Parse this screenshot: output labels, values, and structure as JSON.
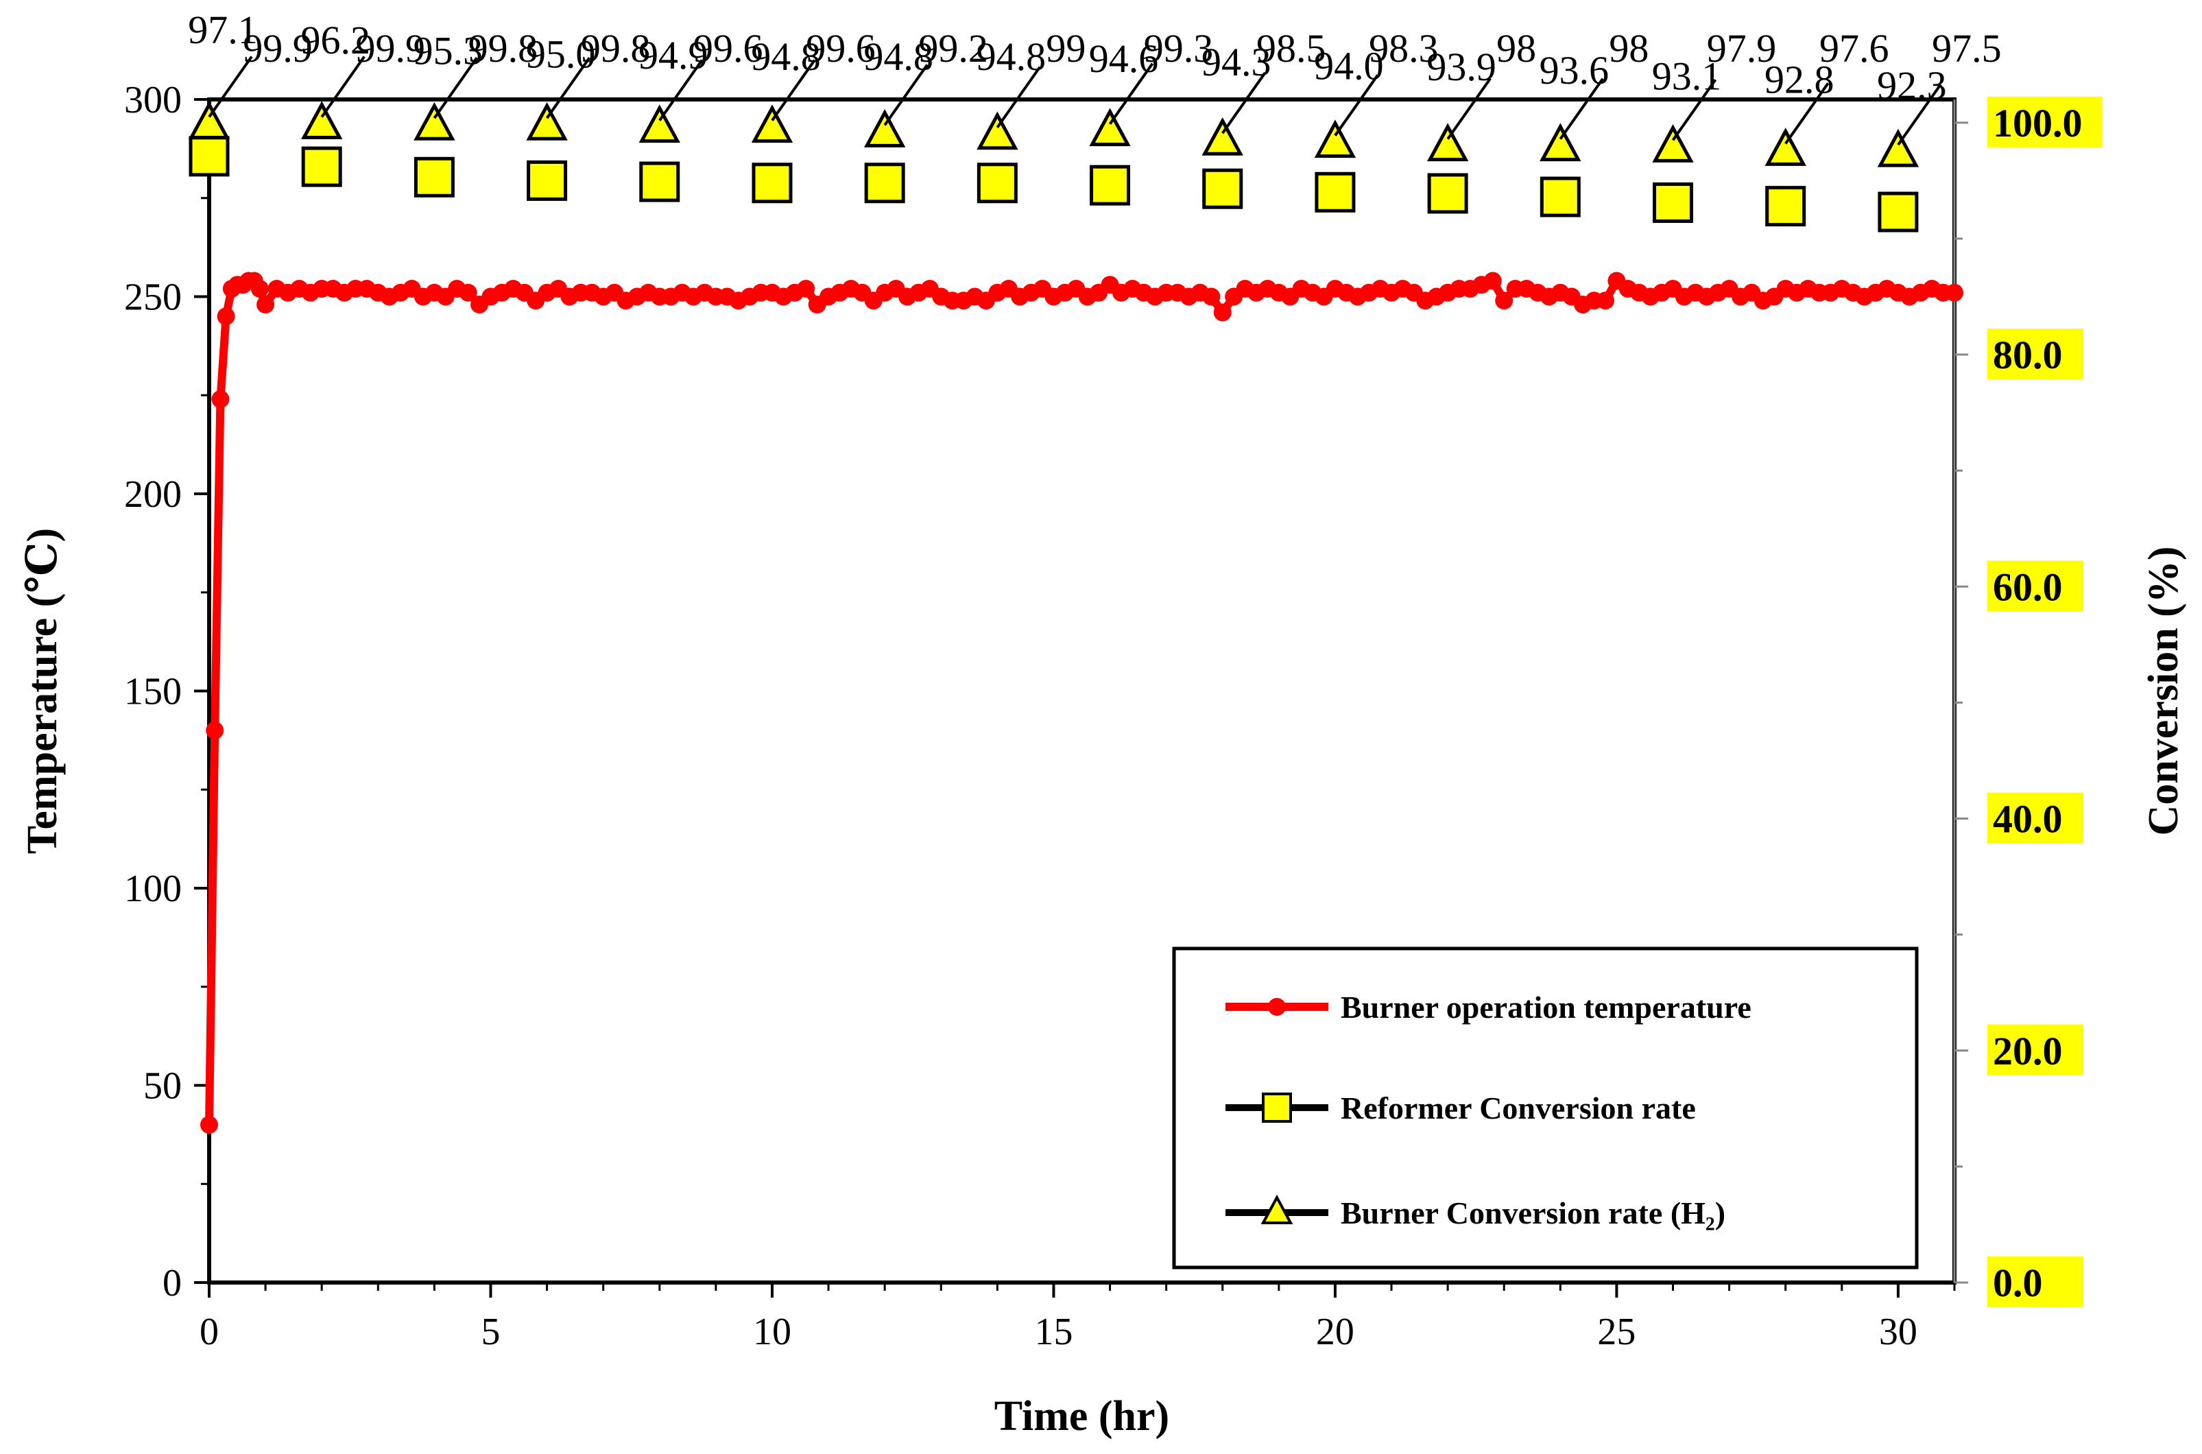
{
  "chart_data": {
    "type": "line",
    "title": "",
    "xlabel": "Time (hr)",
    "ylabel": "Temperature (℃)",
    "y2label": "Conversion (%)",
    "xlim": [
      0,
      31
    ],
    "ylim": [
      0,
      300
    ],
    "y2lim": [
      0,
      102
    ],
    "xticks": [
      0,
      5,
      10,
      15,
      20,
      25,
      30
    ],
    "yticks": [
      0,
      50,
      100,
      150,
      200,
      250,
      300
    ],
    "y2ticks": [
      "0.0",
      "20.0",
      "40.0",
      "60.0",
      "80.0",
      "100.0"
    ],
    "y2tick_highlight": "#ffff00",
    "series": [
      {
        "name": "Burner operation temperature",
        "axis": "left",
        "color": "#ff0000",
        "marker": "circle",
        "x": [
          0,
          0.1,
          0.2,
          0.3,
          0.4,
          0.5,
          0.6,
          0.7,
          0.8,
          0.9,
          1.0,
          1.2,
          1.4,
          1.6,
          1.8,
          2.0,
          2.2,
          2.4,
          2.6,
          2.8,
          3.0,
          3.2,
          3.4,
          3.6,
          3.8,
          4.0,
          4.2,
          4.4,
          4.6,
          4.8,
          5.0,
          5.2,
          5.4,
          5.6,
          5.8,
          6.0,
          6.2,
          6.4,
          6.6,
          6.8,
          7.0,
          7.2,
          7.4,
          7.6,
          7.8,
          8.0,
          8.2,
          8.4,
          8.6,
          8.8,
          9.0,
          9.2,
          9.4,
          9.6,
          9.8,
          10.0,
          10.2,
          10.4,
          10.6,
          10.8,
          11.0,
          11.2,
          11.4,
          11.6,
          11.8,
          12.0,
          12.2,
          12.4,
          12.6,
          12.8,
          13.0,
          13.2,
          13.4,
          13.6,
          13.8,
          14.0,
          14.2,
          14.4,
          14.6,
          14.8,
          15.0,
          15.2,
          15.4,
          15.6,
          15.8,
          16.0,
          16.2,
          16.4,
          16.6,
          16.8,
          17.0,
          17.2,
          17.4,
          17.6,
          17.8,
          18.0,
          18.2,
          18.4,
          18.6,
          18.8,
          19.0,
          19.2,
          19.4,
          19.6,
          19.8,
          20.0,
          20.2,
          20.4,
          20.6,
          20.8,
          21.0,
          21.2,
          21.4,
          21.6,
          21.8,
          22.0,
          22.2,
          22.4,
          22.6,
          22.8,
          23.0,
          23.2,
          23.4,
          23.6,
          23.8,
          24.0,
          24.2,
          24.4,
          24.6,
          24.8,
          25.0,
          25.2,
          25.4,
          25.6,
          25.8,
          26.0,
          26.2,
          26.4,
          26.6,
          26.8,
          27.0,
          27.2,
          27.4,
          27.6,
          27.8,
          28.0,
          28.2,
          28.4,
          28.6,
          28.8,
          29.0,
          29.2,
          29.4,
          29.6,
          29.8,
          30.0,
          30.2,
          30.4,
          30.6,
          30.8,
          31.0
        ],
        "y": [
          40,
          140,
          224,
          245,
          252,
          253,
          253,
          254,
          254,
          252,
          248,
          252,
          251,
          252,
          251,
          252,
          252,
          251,
          252,
          252,
          251,
          250,
          251,
          252,
          250,
          251,
          250,
          252,
          251,
          248,
          250,
          251,
          252,
          251,
          249,
          251,
          252,
          250,
          251,
          251,
          250,
          251,
          249,
          250,
          251,
          250,
          250,
          251,
          250,
          251,
          250,
          250,
          249,
          250,
          251,
          251,
          250,
          251,
          252,
          248,
          250,
          251,
          252,
          251,
          249,
          251,
          252,
          250,
          251,
          252,
          250,
          249,
          249,
          250,
          249,
          251,
          252,
          250,
          251,
          252,
          250,
          251,
          252,
          250,
          251,
          253,
          251,
          252,
          251,
          250,
          251,
          251,
          250,
          251,
          250,
          246,
          250,
          252,
          251,
          252,
          251,
          250,
          252,
          251,
          250,
          252,
          251,
          250,
          251,
          252,
          251,
          252,
          251,
          249,
          250,
          251,
          252,
          252,
          253,
          254,
          249,
          252,
          252,
          251,
          250,
          251,
          250,
          248,
          249,
          249,
          254,
          252,
          251,
          250,
          251,
          252,
          250,
          251,
          250,
          251,
          252,
          250,
          251,
          249,
          250,
          252,
          251,
          252,
          251,
          251,
          252,
          251,
          250,
          251,
          252,
          251,
          250,
          251,
          252,
          251,
          251
        ]
      },
      {
        "name": "Reformer Conversion rate",
        "axis": "right",
        "color": "#ffff00",
        "marker": "square",
        "x": [
          0,
          2,
          4,
          6,
          8,
          10,
          12,
          14,
          16,
          18,
          20,
          22,
          24,
          26,
          28,
          30
        ],
        "y": [
          97.1,
          96.2,
          95.3,
          95.0,
          94.9,
          94.8,
          94.8,
          94.8,
          94.6,
          94.3,
          94.0,
          93.9,
          93.6,
          93.1,
          92.8,
          92.3
        ],
        "labels": [
          "97.1",
          "96.2",
          "95.3",
          "95.0",
          "94.9",
          "94.8",
          "94.8",
          "94.8",
          "94.6",
          "94.3",
          "94.0",
          "93.9",
          "93.6",
          "93.1",
          "92.8",
          "92.3"
        ]
      },
      {
        "name": "Burner Conversion rate (H₂)",
        "axis": "right",
        "color": "#ffff00",
        "marker": "triangle",
        "x": [
          0,
          2,
          4,
          6,
          8,
          10,
          12,
          14,
          16,
          18,
          20,
          22,
          24,
          26,
          28,
          30
        ],
        "y": [
          99.9,
          99.9,
          99.8,
          99.8,
          99.6,
          99.6,
          99.2,
          99,
          99.3,
          98.5,
          98.3,
          98,
          98,
          97.9,
          97.6,
          97.5
        ],
        "labels": [
          "99.9",
          "99.9",
          "99.8",
          "99.8",
          "99.6",
          "99.6",
          "99.2",
          "99",
          "99.3",
          "98.5",
          "98.3",
          "98",
          "98",
          "97.9",
          "97.6",
          "97.5"
        ]
      }
    ],
    "legend": {
      "placement": "bottom-right",
      "entries": [
        "Burner operation temperature",
        "Reformer Conversion rate",
        "Burner Conversion  rate (H₂)"
      ]
    }
  }
}
